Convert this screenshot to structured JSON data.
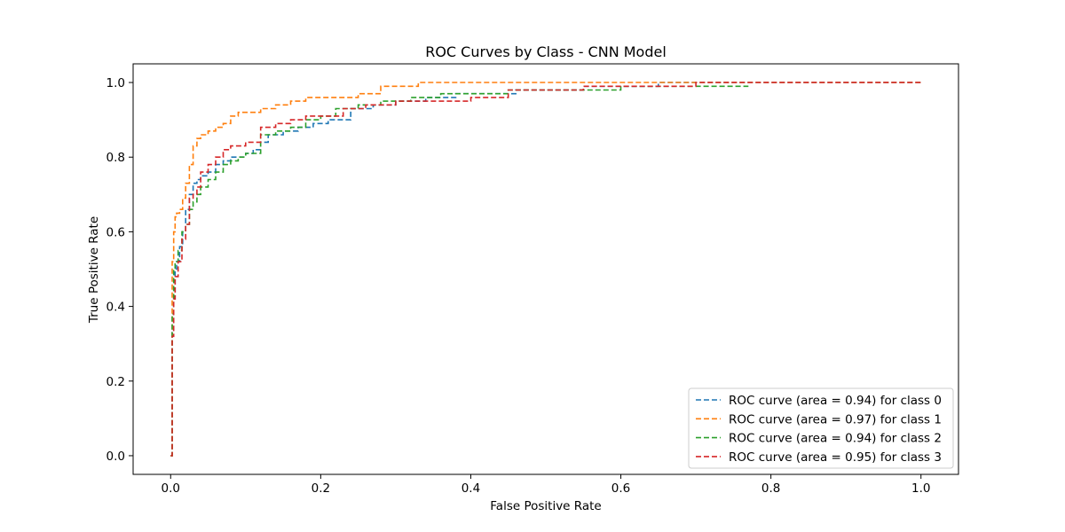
{
  "chart_data": {
    "type": "line",
    "title": "ROC Curves by Class - CNN Model",
    "xlabel": "False Positive Rate",
    "ylabel": "True Positive Rate",
    "xlim": [
      -0.05,
      1.05
    ],
    "ylim": [
      -0.05,
      1.05
    ],
    "x_ticks": [
      0.0,
      0.2,
      0.4,
      0.6,
      0.8,
      1.0
    ],
    "x_tick_labels": [
      "0.0",
      "0.2",
      "0.4",
      "0.6",
      "0.8",
      "1.0"
    ],
    "y_ticks": [
      0.0,
      0.2,
      0.4,
      0.6,
      0.8,
      1.0
    ],
    "y_tick_labels": [
      "0.0",
      "0.2",
      "0.4",
      "0.6",
      "0.8",
      "1.0"
    ],
    "grid": false,
    "legend_position": "lower-right",
    "line_style": "dashed",
    "series": [
      {
        "name": "ROC curve (area = 0.94) for class 0",
        "color": "#1f77b4",
        "x": [
          0.0,
          0.002,
          0.004,
          0.006,
          0.008,
          0.012,
          0.016,
          0.02,
          0.025,
          0.03,
          0.035,
          0.04,
          0.05,
          0.06,
          0.07,
          0.08,
          0.09,
          0.1,
          0.11,
          0.12,
          0.13,
          0.15,
          0.17,
          0.19,
          0.21,
          0.24,
          0.27,
          0.3,
          0.34,
          0.38,
          0.42,
          0.46,
          0.5,
          0.55,
          0.6,
          0.65,
          0.7,
          0.8,
          0.9,
          1.0
        ],
        "y": [
          0.0,
          0.33,
          0.42,
          0.5,
          0.52,
          0.56,
          0.6,
          0.66,
          0.7,
          0.73,
          0.74,
          0.75,
          0.76,
          0.78,
          0.79,
          0.8,
          0.8,
          0.81,
          0.82,
          0.84,
          0.86,
          0.87,
          0.88,
          0.89,
          0.9,
          0.93,
          0.94,
          0.95,
          0.96,
          0.97,
          0.97,
          0.98,
          0.98,
          0.99,
          0.99,
          1.0,
          1.0,
          1.0,
          1.0,
          1.0
        ]
      },
      {
        "name": "ROC curve (area = 0.97) for class 1",
        "color": "#ff7f0e",
        "x": [
          0.0,
          0.002,
          0.004,
          0.006,
          0.008,
          0.012,
          0.016,
          0.02,
          0.025,
          0.03,
          0.035,
          0.04,
          0.05,
          0.06,
          0.07,
          0.08,
          0.09,
          0.1,
          0.12,
          0.14,
          0.16,
          0.18,
          0.2,
          0.25,
          0.28,
          0.33,
          0.4,
          0.5,
          0.6,
          0.7,
          0.8,
          0.9,
          1.0
        ],
        "y": [
          0.0,
          0.52,
          0.6,
          0.64,
          0.65,
          0.66,
          0.69,
          0.73,
          0.78,
          0.83,
          0.85,
          0.86,
          0.87,
          0.88,
          0.89,
          0.91,
          0.92,
          0.92,
          0.93,
          0.94,
          0.95,
          0.96,
          0.96,
          0.97,
          0.99,
          1.0,
          1.0,
          1.0,
          1.0,
          1.0,
          1.0,
          1.0,
          1.0
        ]
      },
      {
        "name": "ROC curve (area = 0.94) for class 2",
        "color": "#2ca02c",
        "x": [
          0.0,
          0.002,
          0.004,
          0.006,
          0.01,
          0.015,
          0.02,
          0.025,
          0.03,
          0.035,
          0.04,
          0.05,
          0.06,
          0.07,
          0.08,
          0.09,
          0.1,
          0.12,
          0.14,
          0.16,
          0.18,
          0.2,
          0.22,
          0.25,
          0.28,
          0.32,
          0.36,
          0.4,
          0.45,
          0.5,
          0.6,
          0.7,
          0.77
        ],
        "y": [
          0.0,
          0.38,
          0.5,
          0.52,
          0.55,
          0.6,
          0.62,
          0.66,
          0.68,
          0.7,
          0.72,
          0.74,
          0.76,
          0.78,
          0.79,
          0.8,
          0.81,
          0.86,
          0.87,
          0.88,
          0.9,
          0.91,
          0.93,
          0.94,
          0.95,
          0.96,
          0.97,
          0.97,
          0.98,
          0.98,
          0.99,
          0.99,
          0.99
        ]
      },
      {
        "name": "ROC curve (area = 0.95) for class 3",
        "color": "#d62728",
        "x": [
          0.0,
          0.002,
          0.004,
          0.006,
          0.01,
          0.015,
          0.02,
          0.025,
          0.03,
          0.035,
          0.04,
          0.05,
          0.06,
          0.07,
          0.08,
          0.1,
          0.12,
          0.14,
          0.16,
          0.18,
          0.2,
          0.23,
          0.26,
          0.3,
          0.35,
          0.4,
          0.45,
          0.5,
          0.55,
          0.6,
          0.7,
          0.8,
          0.9,
          1.0
        ],
        "y": [
          0.0,
          0.32,
          0.42,
          0.48,
          0.52,
          0.58,
          0.62,
          0.69,
          0.7,
          0.72,
          0.76,
          0.78,
          0.8,
          0.82,
          0.83,
          0.84,
          0.88,
          0.89,
          0.9,
          0.91,
          0.91,
          0.93,
          0.94,
          0.95,
          0.95,
          0.96,
          0.98,
          0.98,
          0.99,
          0.99,
          1.0,
          1.0,
          1.0,
          1.0
        ]
      }
    ]
  }
}
